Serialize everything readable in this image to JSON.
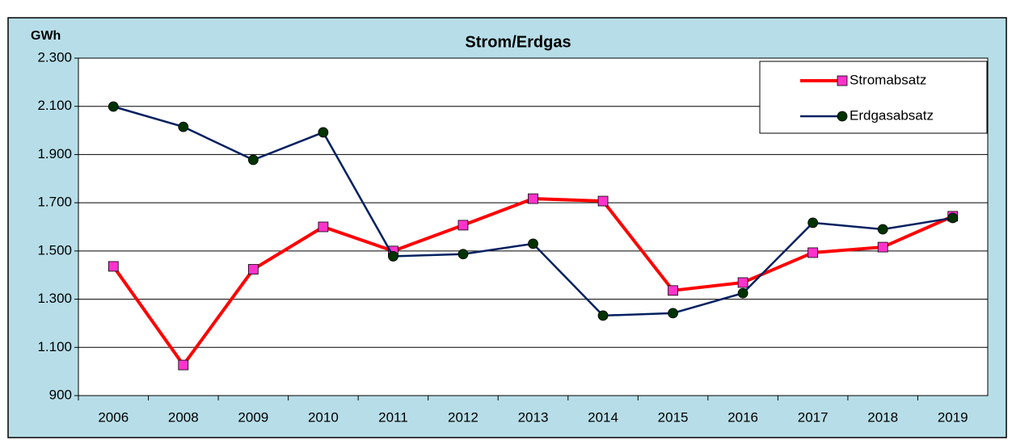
{
  "chart_data": {
    "type": "line",
    "title": "Strom/Erdgas",
    "y_label": "GWh",
    "categories": [
      "2006",
      "2008",
      "2009",
      "2010",
      "2011",
      "2012",
      "2013",
      "2014",
      "2015",
      "2016",
      "2017",
      "2018",
      "2019"
    ],
    "series": [
      {
        "name": "Stromabsatz",
        "color": "#ff0000",
        "marker_color": "#ff33cc",
        "marker": "square",
        "values": [
          1436,
          1027,
          1424,
          1600,
          1500,
          1607,
          1717,
          1707,
          1336,
          1369,
          1493,
          1516,
          1644
        ]
      },
      {
        "name": "Erdgasabsatz",
        "color": "#002060",
        "marker_color": "#003300",
        "marker": "circle",
        "values": [
          2099,
          2015,
          1878,
          1992,
          1478,
          1487,
          1530,
          1232,
          1242,
          1325,
          1617,
          1590,
          1637
        ]
      }
    ],
    "ylim": [
      900,
      2300
    ],
    "yticks": [
      {
        "value": 900,
        "label": "900"
      },
      {
        "value": 1100,
        "label": "1.100"
      },
      {
        "value": 1300,
        "label": "1.300"
      },
      {
        "value": 1500,
        "label": "1.500"
      },
      {
        "value": 1700,
        "label": "1.700"
      },
      {
        "value": 1900,
        "label": "1.900"
      },
      {
        "value": 2100,
        "label": "2.100"
      },
      {
        "value": 2300,
        "label": "2.300"
      }
    ],
    "grid": true,
    "legend": "top-right"
  }
}
